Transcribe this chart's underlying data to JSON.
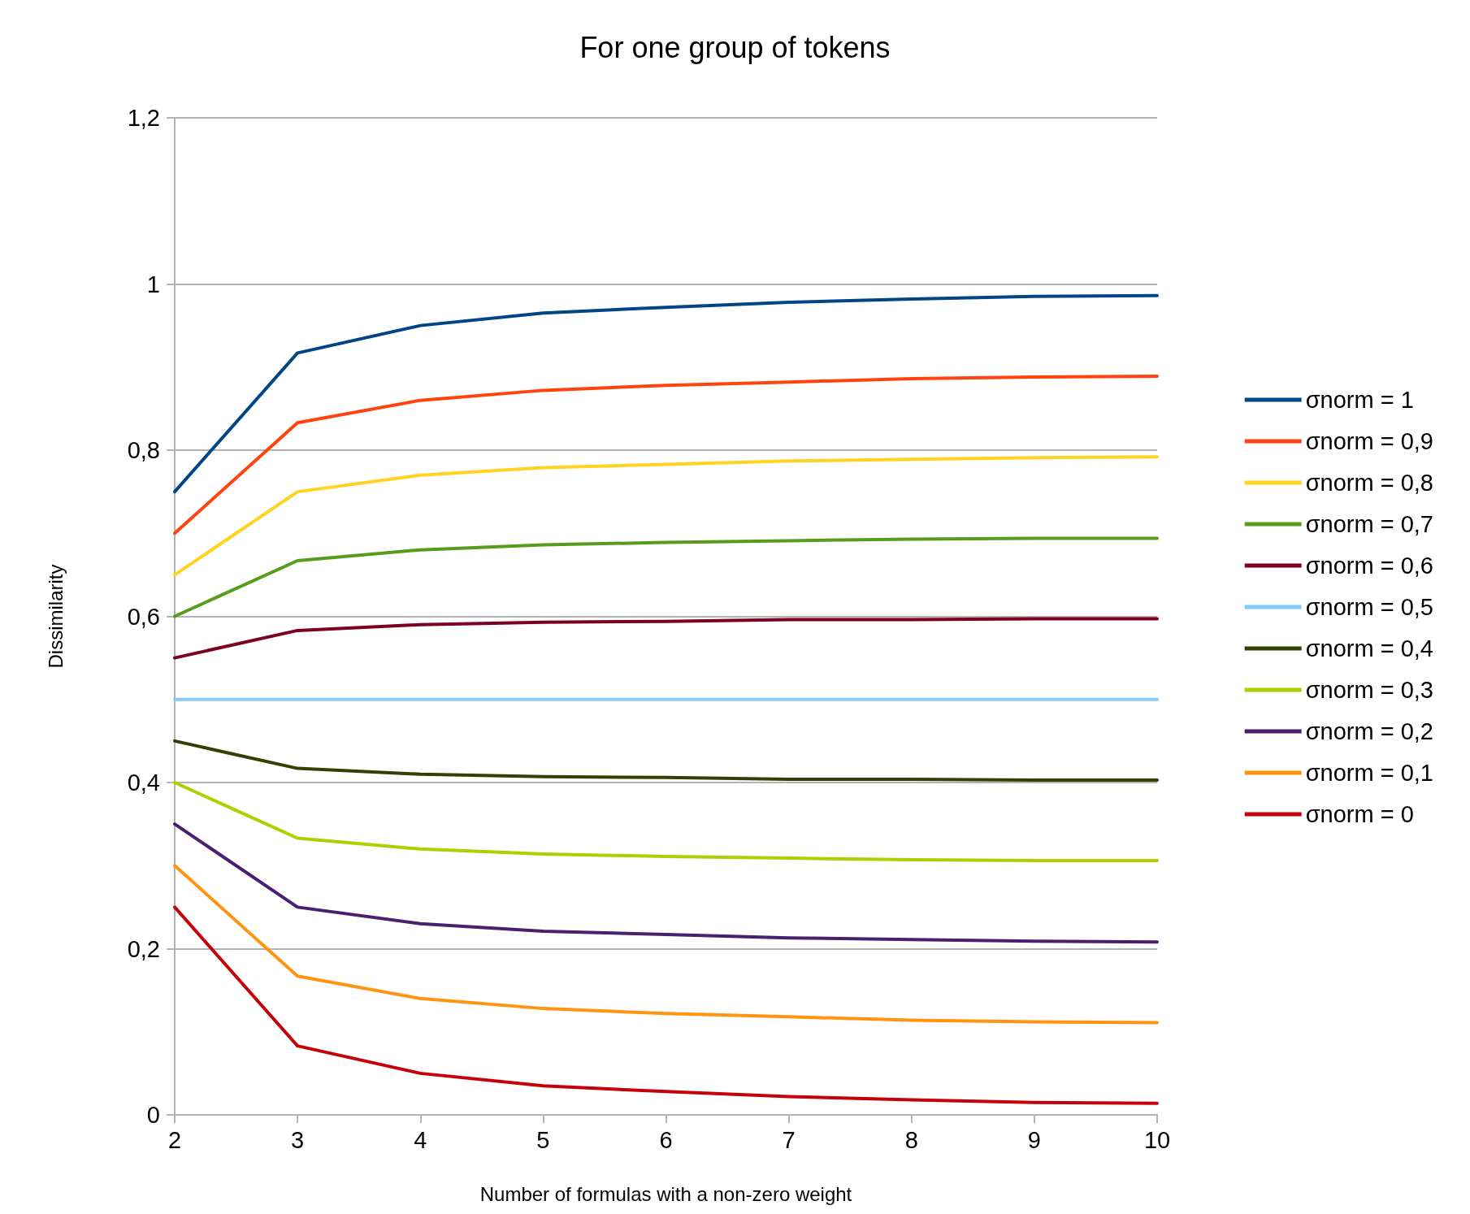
{
  "chart_data": {
    "type": "line",
    "title": "For one group of tokens",
    "xlabel": "Number of formulas with a non-zero weight",
    "ylabel": "Dissimilarity",
    "x": [
      2,
      3,
      4,
      5,
      6,
      7,
      8,
      9,
      10
    ],
    "xlim": [
      2,
      10
    ],
    "xticks": [
      2,
      3,
      4,
      5,
      6,
      7,
      8,
      9,
      10
    ],
    "ylim": [
      0,
      1.2
    ],
    "yticks": [
      0,
      {
        "value": 0.2,
        "label": "0,2"
      },
      {
        "value": 0.4,
        "label": "0,4"
      },
      {
        "value": 0.6,
        "label": "0,6"
      },
      {
        "value": 0.8,
        "label": "0,8"
      },
      1,
      {
        "value": 1.2,
        "label": "1,2"
      }
    ],
    "grid": "y",
    "legend": "right",
    "marker": "none",
    "line_style": "solid",
    "series": [
      {
        "name": "σnorm = 1",
        "color": "#004586",
        "values": [
          0.75,
          0.917,
          0.95,
          0.965,
          0.972,
          0.978,
          0.982,
          0.985,
          0.986
        ]
      },
      {
        "name": "σnorm = 0,9",
        "color": "#ff420e",
        "values": [
          0.7,
          0.833,
          0.86,
          0.872,
          0.878,
          0.882,
          0.886,
          0.888,
          0.889
        ]
      },
      {
        "name": "σnorm = 0,8",
        "color": "#ffd320",
        "values": [
          0.65,
          0.75,
          0.77,
          0.779,
          0.783,
          0.787,
          0.789,
          0.791,
          0.792
        ]
      },
      {
        "name": "σnorm = 0,7",
        "color": "#579d1c",
        "values": [
          0.6,
          0.667,
          0.68,
          0.686,
          0.689,
          0.691,
          0.693,
          0.694,
          0.694
        ]
      },
      {
        "name": "σnorm = 0,6",
        "color": "#7e0021",
        "values": [
          0.55,
          0.583,
          0.59,
          0.593,
          0.594,
          0.596,
          0.596,
          0.597,
          0.597
        ]
      },
      {
        "name": "σnorm = 0,5",
        "color": "#83caff",
        "values": [
          0.5,
          0.5,
          0.5,
          0.5,
          0.5,
          0.5,
          0.5,
          0.5,
          0.5
        ]
      },
      {
        "name": "σnorm = 0,4",
        "color": "#314004",
        "values": [
          0.45,
          0.417,
          0.41,
          0.407,
          0.406,
          0.404,
          0.404,
          0.403,
          0.403
        ]
      },
      {
        "name": "σnorm = 0,3",
        "color": "#aecf00",
        "values": [
          0.4,
          0.333,
          0.32,
          0.314,
          0.311,
          0.309,
          0.307,
          0.306,
          0.306
        ]
      },
      {
        "name": "σnorm = 0,2",
        "color": "#4b1f6f",
        "values": [
          0.35,
          0.25,
          0.23,
          0.221,
          0.217,
          0.213,
          0.211,
          0.209,
          0.208
        ]
      },
      {
        "name": "σnorm = 0,1",
        "color": "#ff950e",
        "values": [
          0.3,
          0.167,
          0.14,
          0.128,
          0.122,
          0.118,
          0.114,
          0.112,
          0.111
        ]
      },
      {
        "name": "σnorm = 0",
        "color": "#c5000b",
        "values": [
          0.25,
          0.083,
          0.05,
          0.035,
          0.028,
          0.022,
          0.018,
          0.015,
          0.014
        ]
      }
    ]
  }
}
